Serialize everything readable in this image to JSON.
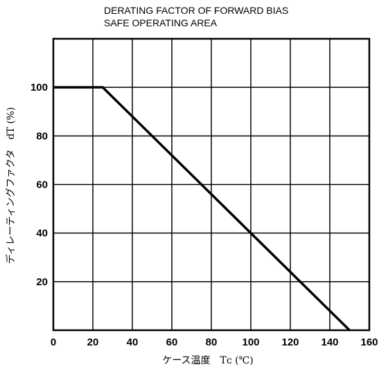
{
  "chart_data": {
    "type": "line",
    "title": [
      "DERATING FACTOR OF FORWARD BIAS",
      "SAFE OPERATING AREA"
    ],
    "xlabel": "ケース温度　Tᴄ (℃)",
    "ylabel": "ディレーティングファクタ　dT (%)",
    "x_ticks": [
      "0",
      "20",
      "40",
      "60",
      "80",
      "100",
      "120",
      "140",
      "160"
    ],
    "y_ticks": [
      "20",
      "40",
      "60",
      "80",
      "100"
    ],
    "xlim": [
      0,
      160
    ],
    "ylim": [
      0,
      120
    ],
    "grid": true,
    "series": [
      {
        "x": [
          0,
          25,
          150
        ],
        "y": [
          100,
          100,
          0
        ]
      }
    ]
  }
}
